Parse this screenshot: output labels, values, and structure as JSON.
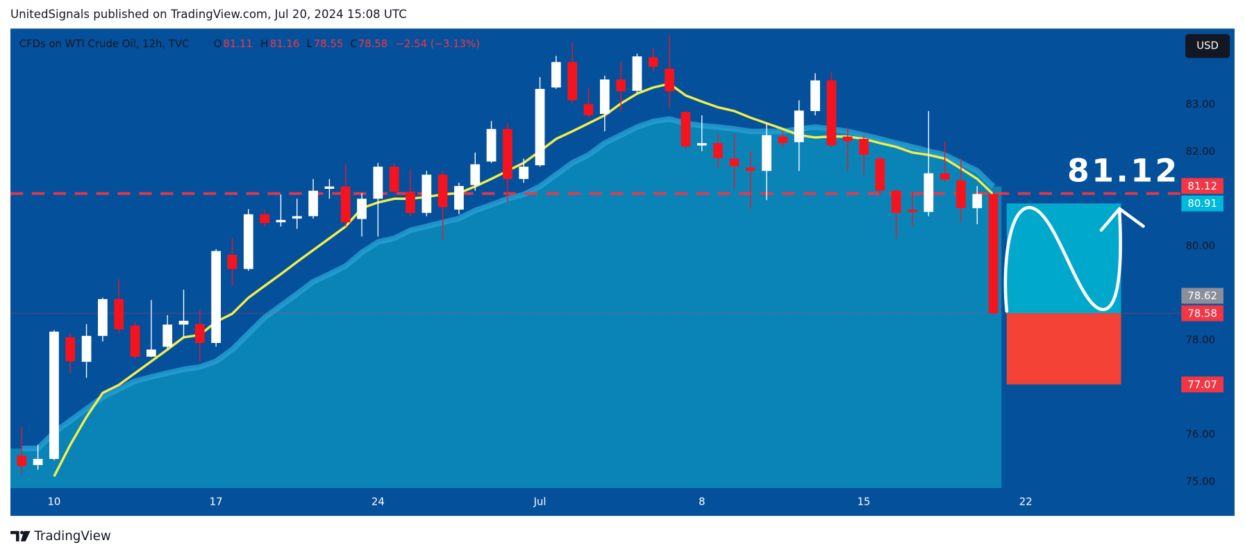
{
  "header": {
    "text": "UnitedSignals published on TradingView.com, Jul 20, 2024 15:08 UTC"
  },
  "footer": {
    "logo_text": "TradingView"
  },
  "currency_button": "USD",
  "chart_data": {
    "type": "candlestick",
    "symbol": "CFDs on WTI Crude Oil, 12h, TVC",
    "ohlc_labels": [
      "O",
      "H",
      "L",
      "C"
    ],
    "change": "−2.54 (−3.13%)",
    "categories": [
      null,
      null,
      "10",
      null,
      null,
      null,
      null,
      null,
      null,
      null,
      null,
      null,
      "17",
      null,
      null,
      null,
      null,
      null,
      null,
      null,
      null,
      null,
      "24",
      null,
      null,
      null,
      null,
      null,
      null,
      null,
      null,
      null,
      "Jul",
      null,
      null,
      null,
      null,
      null,
      null,
      null,
      null,
      null,
      "8",
      null,
      null,
      null,
      null,
      null,
      null,
      null,
      null,
      null,
      "15",
      null,
      null,
      null,
      null,
      null,
      null,
      null,
      null,
      null,
      "22",
      null,
      null,
      null,
      null,
      null,
      null,
      null,
      null,
      null
    ],
    "open": [
      75.56,
      75.36,
      75.49,
      78.07,
      77.55,
      78.1,
      78.88,
      78.32,
      77.66,
      77.87,
      78.34,
      78.35,
      77.95,
      79.82,
      79.52,
      80.68,
      80.51,
      80.59,
      80.64,
      81.22,
      81.27,
      80.58,
      81.01,
      81.69,
      81.16,
      80.71,
      81.52,
      80.78,
      81.3,
      81.8,
      82.49,
      81.43,
      81.72,
      83.37,
      83.91,
      83.02,
      82.81,
      83.54,
      83.3,
      84.01,
      83.77,
      82.85,
      82.14,
      82.19,
      81.86,
      81.67,
      81.6,
      82.33,
      82.21,
      82.87,
      83.52,
      82.33,
      82.28,
      81.86,
      81.18,
      80.78,
      80.73,
      81.55,
      81.4,
      80.81,
      81.11,
      null,
      null,
      null,
      null,
      null,
      null,
      null,
      null,
      null,
      null,
      null
    ],
    "high": [
      76.18,
      75.79,
      78.22,
      78.15,
      78.35,
      78.91,
      79.3,
      78.4,
      78.86,
      78.54,
      79.08,
      78.66,
      79.94,
      80.17,
      80.79,
      80.78,
      81.1,
      81.01,
      81.43,
      81.43,
      81.74,
      81.13,
      81.77,
      81.77,
      81.64,
      81.6,
      81.6,
      81.35,
      81.99,
      82.66,
      82.61,
      81.86,
      83.59,
      84.04,
      84.33,
      83.37,
      83.62,
      83.91,
      84.09,
      84.21,
      84.48,
      82.87,
      82.78,
      82.39,
      82.39,
      82.02,
      82.6,
      82.44,
      83.1,
      83.67,
      83.69,
      82.53,
      82.36,
      81.92,
      81.22,
      81.15,
      82.87,
      82.23,
      81.86,
      81.28,
      81.16,
      null,
      null,
      null,
      null,
      null,
      null,
      null,
      null,
      null,
      null,
      null
    ],
    "low": [
      75.17,
      75.26,
      75.46,
      77.31,
      77.21,
      77.98,
      78.15,
      77.61,
      77.65,
      77.81,
      78.07,
      77.56,
      77.87,
      79.16,
      79.48,
      80.42,
      80.42,
      80.37,
      80.59,
      81.01,
      80.42,
      80.21,
      80.21,
      81.1,
      80.64,
      80.64,
      80.14,
      80.68,
      81.18,
      81.77,
      80.93,
      81.35,
      81.69,
      83.34,
      83.03,
      82.73,
      82.44,
      82.87,
      83.24,
      83.71,
      82.95,
      82.06,
      82.02,
      81.65,
      81.22,
      80.79,
      80.98,
      82.11,
      81.6,
      82.78,
      82.11,
      81.6,
      81.52,
      81.1,
      80.17,
      80.42,
      80.64,
      81.35,
      80.51,
      80.47,
      78.55,
      null,
      null,
      null,
      null,
      null,
      null,
      null,
      null,
      null,
      null,
      null
    ],
    "close": [
      75.34,
      75.49,
      78.19,
      77.56,
      78.1,
      78.88,
      78.24,
      77.66,
      77.81,
      78.34,
      78.42,
      77.95,
      79.9,
      79.52,
      80.68,
      80.49,
      80.56,
      80.64,
      81.18,
      81.27,
      80.51,
      81.01,
      81.69,
      81.16,
      80.71,
      81.52,
      80.83,
      81.28,
      81.74,
      82.49,
      81.43,
      81.69,
      83.34,
      83.91,
      83.1,
      82.78,
      83.54,
      83.29,
      84.03,
      83.81,
      83.29,
      82.12,
      82.19,
      81.87,
      81.7,
      81.6,
      82.36,
      82.19,
      82.88,
      83.52,
      82.14,
      82.23,
      81.94,
      81.18,
      80.71,
      80.73,
      81.55,
      81.42,
      80.81,
      81.11,
      78.58,
      null,
      null,
      null,
      null,
      null,
      null,
      null,
      null,
      null,
      null,
      null
    ],
    "up_color": "#ffffff",
    "down_color": "#f5141e",
    "moving_averages": [
      {
        "style": "area",
        "color": "#27a0d3",
        "fill": "#0a84b7",
        "values": [
          75.71,
          75.71,
          76.05,
          76.3,
          76.55,
          76.8,
          76.97,
          77.14,
          77.23,
          77.31,
          77.39,
          77.44,
          77.56,
          77.81,
          78.15,
          78.49,
          78.74,
          78.99,
          79.25,
          79.41,
          79.58,
          79.87,
          80.09,
          80.17,
          80.34,
          80.42,
          80.51,
          80.59,
          80.76,
          80.88,
          81.01,
          81.1,
          81.27,
          81.52,
          81.77,
          81.94,
          82.19,
          82.36,
          82.53,
          82.65,
          82.7,
          82.61,
          82.56,
          82.53,
          82.49,
          82.44,
          82.44,
          82.44,
          82.49,
          82.53,
          82.49,
          82.44,
          82.36,
          82.28,
          82.19,
          82.11,
          82.02,
          81.94,
          81.77,
          81.6,
          81.27,
          null,
          null,
          null,
          null,
          null,
          null,
          null,
          null,
          null,
          null,
          null
        ]
      },
      {
        "style": "line",
        "color": "#f3ee4c",
        "values": [
          null,
          null,
          75.12,
          75.79,
          76.38,
          76.89,
          77.06,
          77.31,
          77.56,
          77.81,
          78.07,
          78.12,
          78.4,
          78.57,
          78.91,
          79.16,
          79.41,
          79.67,
          79.92,
          80.17,
          80.42,
          80.81,
          80.93,
          81.01,
          81.01,
          81.05,
          81.1,
          81.13,
          81.27,
          81.43,
          81.6,
          81.77,
          82.02,
          82.28,
          82.44,
          82.61,
          82.78,
          83.03,
          83.24,
          83.37,
          83.45,
          83.2,
          83.07,
          82.95,
          82.87,
          82.73,
          82.61,
          82.49,
          82.36,
          82.31,
          82.33,
          82.33,
          82.28,
          82.19,
          82.11,
          81.99,
          81.94,
          81.86,
          81.65,
          81.43,
          81.1,
          null,
          null,
          null,
          null,
          null,
          null,
          null,
          null,
          null,
          null,
          null
        ]
      }
    ],
    "ylim": [
      74.87,
      84.62
    ],
    "yticks": [
      {
        "value": 75,
        "label": "75.00"
      },
      {
        "value": 76,
        "label": "76.00"
      },
      {
        "value": 78,
        "label": "78.00"
      },
      {
        "value": 80,
        "label": "80.00"
      },
      {
        "value": 82,
        "label": "82.00"
      },
      {
        "value": 83,
        "label": "83.00"
      }
    ],
    "grid": false,
    "price_lines": [
      {
        "value": 81.12,
        "color": "#f23645",
        "style": "dashed"
      },
      {
        "value": 78.58,
        "color": "#f23645",
        "style": "dotted"
      }
    ],
    "price_markers": [
      {
        "value": 81.12,
        "color": "#f23645"
      },
      {
        "value": 80.91,
        "color": "#00b8d9"
      },
      {
        "value": 78.62,
        "color": "#8a8f9a"
      },
      {
        "value": 78.58,
        "color": "#f23645"
      },
      {
        "value": 77.07,
        "color": "#f23645"
      }
    ],
    "position": {
      "target": 80.91,
      "entry": 78.58,
      "stop": 77.07,
      "target_color": "#00a9cc",
      "stop_color": "#f44336"
    },
    "annotation": "81.12"
  }
}
